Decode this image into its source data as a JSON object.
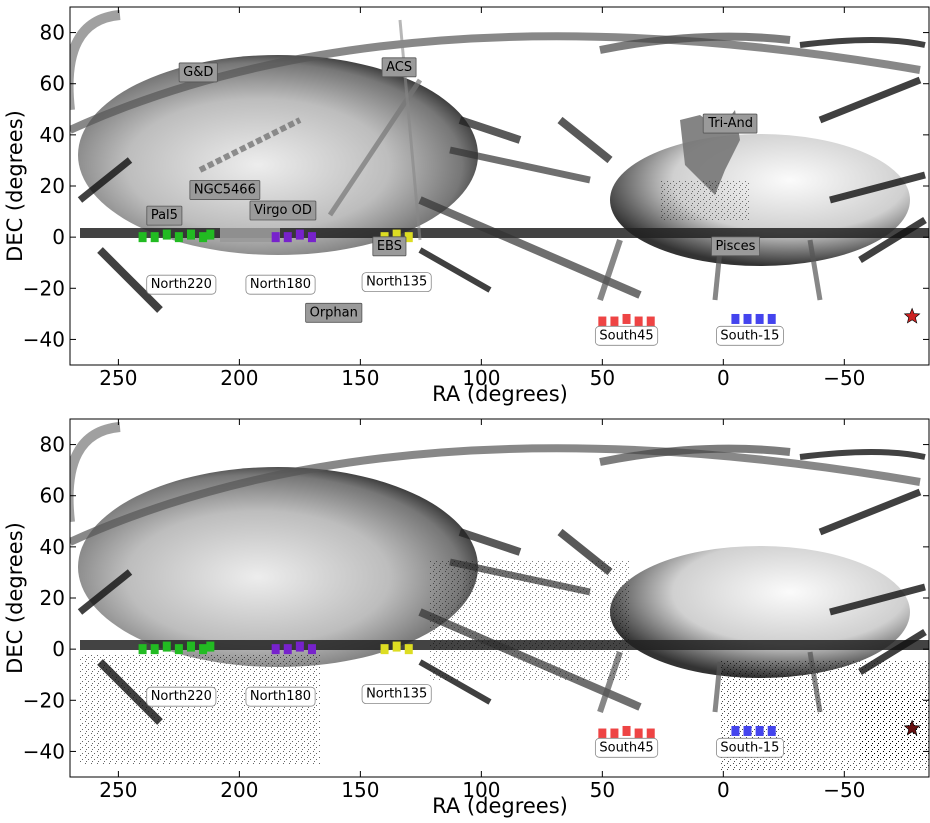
{
  "chart_data": [
    {
      "type": "scatter",
      "panel": "top",
      "xlabel": "RA (degrees)",
      "ylabel": "DEC (degrees)",
      "xlim": [
        270,
        -85
      ],
      "ylim": [
        -50,
        90
      ],
      "xticks": [
        250,
        200,
        150,
        100,
        50,
        0,
        -50
      ],
      "xtick_labels": [
        "250",
        "200",
        "150",
        "100",
        "50",
        "0",
        "−50"
      ],
      "yticks": [
        80,
        60,
        40,
        20,
        0,
        -20,
        -40
      ],
      "ytick_labels": [
        "80",
        "60",
        "40",
        "20",
        "0",
        "−20",
        "−40"
      ],
      "grid": false,
      "series": [
        {
          "color": "#22bb22",
          "points": [
            [
              240,
              0
            ],
            [
              235,
              0
            ],
            [
              230,
              1
            ],
            [
              225,
              0
            ],
            [
              220,
              1
            ],
            [
              215,
              0
            ],
            [
              212,
              1
            ]
          ]
        },
        {
          "color": "#7722cc",
          "points": [
            [
              185,
              0
            ],
            [
              180,
              0
            ],
            [
              175,
              1
            ],
            [
              170,
              0
            ]
          ]
        },
        {
          "color": "#dddd22",
          "points": [
            [
              140,
              0
            ],
            [
              135,
              1
            ],
            [
              130,
              0
            ]
          ]
        },
        {
          "color": "#ee4444",
          "points": [
            [
              50,
              -33
            ],
            [
              45,
              -33
            ],
            [
              40,
              -32
            ],
            [
              35,
              -33
            ],
            [
              30,
              -33
            ]
          ]
        },
        {
          "color": "#4444ee",
          "points": [
            [
              -5,
              -32
            ],
            [
              -10,
              -32
            ],
            [
              -15,
              -32
            ],
            [
              -20,
              -32
            ]
          ]
        },
        {
          "color": "#cc2222",
          "marker": "star",
          "points": [
            [
              -78,
              -31
            ]
          ]
        }
      ],
      "annotations": [
        {
          "text": "G&D",
          "style": "gray",
          "x": 217,
          "y": 65
        },
        {
          "text": "ACS",
          "style": "gray",
          "x": 134,
          "y": 67
        },
        {
          "text": "Tri-And",
          "style": "gray",
          "x": -3,
          "y": 45
        },
        {
          "text": "NGC5466",
          "style": "gray",
          "x": 206,
          "y": 19
        },
        {
          "text": "Pal5",
          "style": "gray",
          "x": 231,
          "y": 9
        },
        {
          "text": "Virgo OD",
          "style": "gray",
          "x": 182,
          "y": 11
        },
        {
          "text": "EBS",
          "style": "gray",
          "x": 138,
          "y": -3
        },
        {
          "text": "Pisces",
          "style": "gray",
          "x": -5,
          "y": -3
        },
        {
          "text": "Orphan",
          "style": "gray",
          "x": 161,
          "y": -29
        },
        {
          "text": "North220",
          "style": "white",
          "x": 224,
          "y": -18
        },
        {
          "text": "North180",
          "style": "white",
          "x": 183,
          "y": -18
        },
        {
          "text": "North135",
          "style": "white",
          "x": 135,
          "y": -17
        },
        {
          "text": "South45",
          "style": "white",
          "x": 40,
          "y": -38
        },
        {
          "text": "South-15",
          "style": "white",
          "x": -11,
          "y": -38
        }
      ]
    },
    {
      "type": "scatter",
      "panel": "bottom",
      "xlabel": "RA (degrees)",
      "ylabel": "DEC (degrees)",
      "xlim": [
        270,
        -85
      ],
      "ylim": [
        -50,
        90
      ],
      "xticks": [
        250,
        200,
        150,
        100,
        50,
        0,
        -50
      ],
      "xtick_labels": [
        "250",
        "200",
        "150",
        "100",
        "50",
        "0",
        "−50"
      ],
      "yticks": [
        80,
        60,
        40,
        20,
        0,
        -20,
        -40
      ],
      "ytick_labels": [
        "80",
        "60",
        "40",
        "20",
        "0",
        "−20",
        "−40"
      ],
      "grid": false,
      "series": [
        {
          "color": "#22bb22",
          "points": [
            [
              240,
              0
            ],
            [
              235,
              0
            ],
            [
              230,
              1
            ],
            [
              225,
              0
            ],
            [
              220,
              1
            ],
            [
              215,
              0
            ],
            [
              212,
              1
            ]
          ]
        },
        {
          "color": "#7722cc",
          "points": [
            [
              185,
              0
            ],
            [
              180,
              0
            ],
            [
              175,
              1
            ],
            [
              170,
              0
            ]
          ]
        },
        {
          "color": "#dddd22",
          "points": [
            [
              140,
              0
            ],
            [
              135,
              1
            ],
            [
              130,
              0
            ]
          ]
        },
        {
          "color": "#ee4444",
          "points": [
            [
              50,
              -33
            ],
            [
              45,
              -33
            ],
            [
              40,
              -32
            ],
            [
              35,
              -33
            ],
            [
              30,
              -33
            ]
          ]
        },
        {
          "color": "#4444ee",
          "points": [
            [
              -5,
              -32
            ],
            [
              -10,
              -32
            ],
            [
              -15,
              -32
            ],
            [
              -20,
              -32
            ]
          ]
        },
        {
          "color": "#661111",
          "marker": "star",
          "points": [
            [
              -78,
              -31
            ]
          ]
        }
      ],
      "annotations": [
        {
          "text": "North220",
          "style": "white",
          "x": 224,
          "y": -18
        },
        {
          "text": "North180",
          "style": "white",
          "x": 183,
          "y": -18
        },
        {
          "text": "North135",
          "style": "white",
          "x": 135,
          "y": -17
        },
        {
          "text": "South45",
          "style": "white",
          "x": 40,
          "y": -38
        },
        {
          "text": "South-15",
          "style": "white",
          "x": -11,
          "y": -38
        }
      ]
    }
  ]
}
